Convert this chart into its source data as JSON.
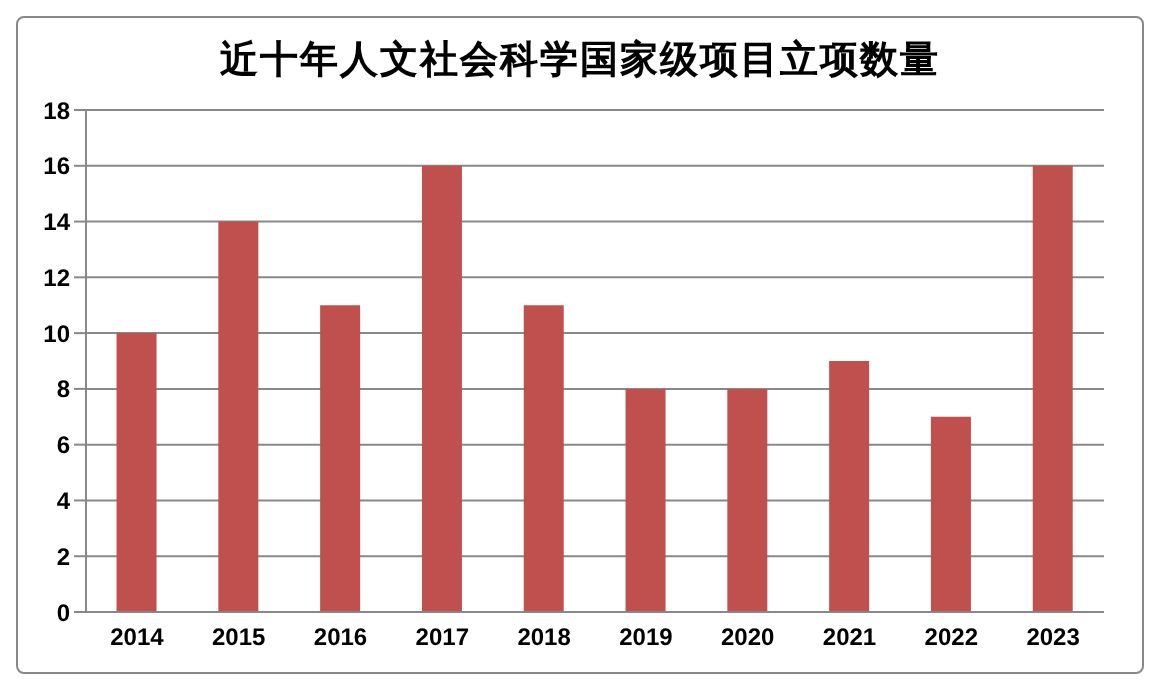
{
  "chart_data": {
    "type": "bar",
    "title": "近十年人文社会科学国家级项目立项数量",
    "categories": [
      "2014",
      "2015",
      "2016",
      "2017",
      "2018",
      "2019",
      "2020",
      "2021",
      "2022",
      "2023"
    ],
    "values": [
      10,
      14,
      11,
      16,
      11,
      8,
      8,
      9,
      7,
      16
    ],
    "color": "#c0504d",
    "ylim": [
      0,
      18
    ],
    "yticks": [
      0,
      2,
      4,
      6,
      8,
      10,
      12,
      14,
      16,
      18
    ],
    "grid": "y",
    "legend": false
  }
}
